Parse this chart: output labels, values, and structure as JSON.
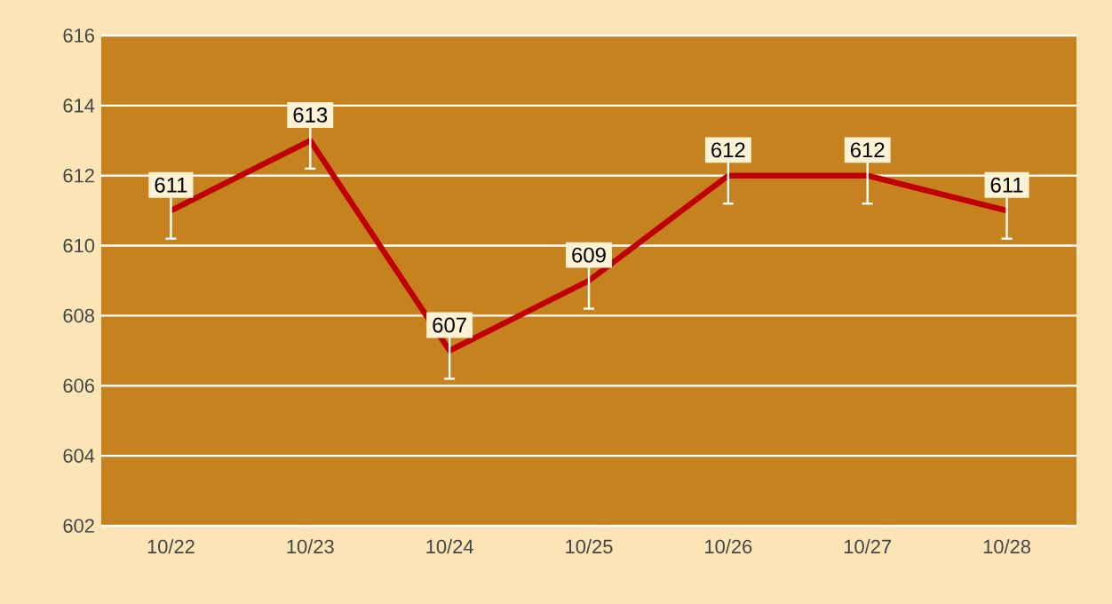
{
  "chart_data": {
    "type": "line",
    "categories": [
      "10/22",
      "10/23",
      "10/24",
      "10/25",
      "10/26",
      "10/27",
      "10/28"
    ],
    "values": [
      611,
      613,
      607,
      609,
      612,
      612,
      611
    ],
    "errors": [
      0.8,
      0.8,
      0.8,
      0.8,
      0.8,
      0.8,
      0.8
    ],
    "color": "#c00000",
    "ylim": [
      602,
      616
    ],
    "yticks": [
      602,
      604,
      606,
      608,
      610,
      612,
      614,
      616
    ],
    "grid": "y",
    "data_labels": true,
    "marker": "none",
    "line_style": "solid"
  }
}
